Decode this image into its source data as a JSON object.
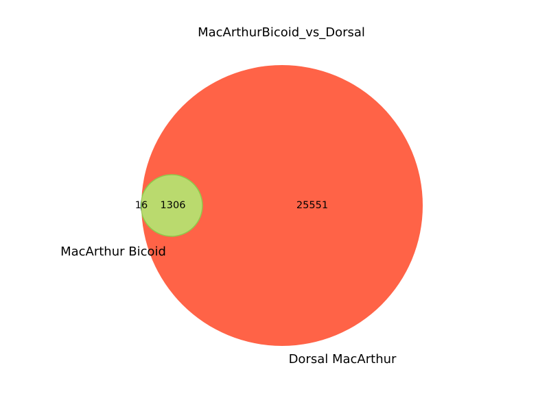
{
  "chart_data": {
    "type": "venn",
    "title": "MacArthurBicoid_vs_Dorsal",
    "sets": [
      {
        "name": "MacArthur Bicoid",
        "color": "#006400"
      },
      {
        "name": "Dorsal MacArthur",
        "color": "#ff6347"
      }
    ],
    "overlap_color": "#bada6e",
    "regions": [
      {
        "id": "only_a",
        "sets": [
          "MacArthur Bicoid"
        ],
        "value": 16
      },
      {
        "id": "a_and_b",
        "sets": [
          "MacArthur Bicoid",
          "Dorsal MacArthur"
        ],
        "value": 1306
      },
      {
        "id": "only_b",
        "sets": [
          "Dorsal MacArthur"
        ],
        "value": 25551
      }
    ]
  }
}
